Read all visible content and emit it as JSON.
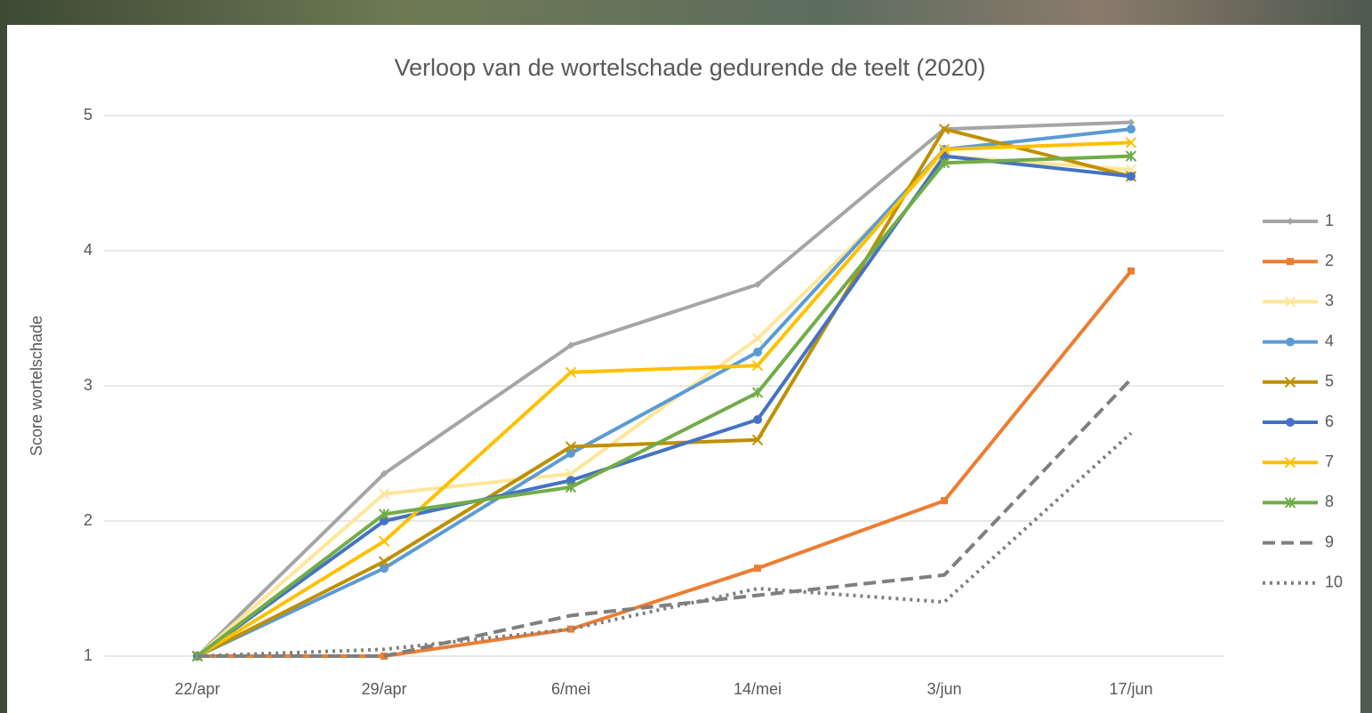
{
  "chart_data": {
    "type": "line",
    "title": "Verloop van de wortelschade gedurende de teelt (2020)",
    "y_label": "Score wortelschade",
    "categories": [
      "22/apr",
      "29/apr",
      "6/mei",
      "14/mei",
      "3/jun",
      "17/jun"
    ],
    "ylim": [
      1,
      5
    ],
    "yticks": [
      1,
      2,
      3,
      4,
      5
    ],
    "grid": true,
    "legend": "right",
    "series": [
      {
        "name": "1",
        "color": "#a5a5a5",
        "marker": "diamond",
        "dash": "solid",
        "values": [
          1,
          2.35,
          3.3,
          3.75,
          4.9,
          4.95
        ]
      },
      {
        "name": "2",
        "color": "#ed7d31",
        "marker": "square",
        "dash": "solid",
        "values": [
          1,
          1,
          1.2,
          1.65,
          2.15,
          3.85
        ]
      },
      {
        "name": "3",
        "color": "#ffe699",
        "marker": "x",
        "dash": "solid",
        "values": [
          1,
          2.2,
          2.35,
          3.35,
          4.7,
          4.6
        ]
      },
      {
        "name": "4",
        "color": "#5b9bd5",
        "marker": "circle",
        "dash": "solid",
        "values": [
          1,
          1.65,
          2.5,
          3.25,
          4.75,
          4.9
        ]
      },
      {
        "name": "5",
        "color": "#bf9000",
        "marker": "x",
        "dash": "solid",
        "values": [
          1,
          1.7,
          2.55,
          2.6,
          4.9,
          4.55
        ]
      },
      {
        "name": "6",
        "color": "#4472c4",
        "marker": "circle",
        "dash": "solid",
        "values": [
          1,
          2.0,
          2.3,
          2.75,
          4.7,
          4.55
        ]
      },
      {
        "name": "7",
        "color": "#ffc000",
        "marker": "x",
        "dash": "solid",
        "values": [
          1,
          1.85,
          3.1,
          3.15,
          4.75,
          4.8
        ]
      },
      {
        "name": "8",
        "color": "#70ad47",
        "marker": "star",
        "dash": "solid",
        "values": [
          1,
          2.05,
          2.25,
          2.95,
          4.65,
          4.7
        ]
      },
      {
        "name": "9",
        "color": "#7f7f7f",
        "marker": "none",
        "dash": "dashed",
        "values": [
          1,
          1,
          1.3,
          1.45,
          1.6,
          3.05
        ]
      },
      {
        "name": "10",
        "color": "#7f7f7f",
        "marker": "none",
        "dash": "dotted",
        "values": [
          1,
          1.05,
          1.2,
          1.5,
          1.4,
          2.65
        ]
      }
    ]
  }
}
